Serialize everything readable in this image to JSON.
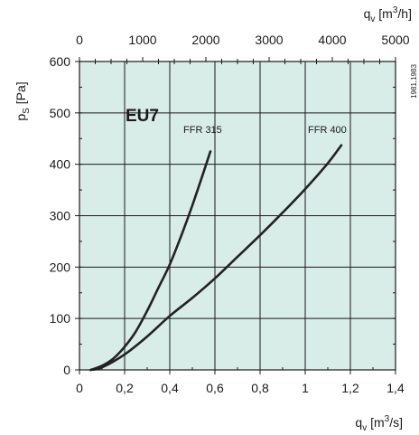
{
  "chart_data": {
    "type": "line",
    "title": "EU7",
    "side_note": "1981,1983",
    "xlabel": {
      "base": "q",
      "sub": "v",
      "unit_open": " [m",
      "unit_sup": "3",
      "unit_close": "/s]"
    },
    "x2label": {
      "base": "q",
      "sub": "v",
      "unit_open": " [m",
      "unit_sup": "3",
      "unit_close": "/h]"
    },
    "ylabel": {
      "base": "p",
      "sub": "S",
      "unit": " [Pa]"
    },
    "xlim": [
      0,
      1.4
    ],
    "ylim": [
      0,
      600
    ],
    "x2lim": [
      0,
      5000
    ],
    "x_ticks": [
      0,
      0.2,
      0.4,
      0.6,
      0.8,
      1,
      1.2,
      1.4
    ],
    "x_tick_labels": [
      "0",
      "0,2",
      "0,4",
      "0,6",
      "0,8",
      "1",
      "1,2",
      "1,4"
    ],
    "y_ticks": [
      0,
      100,
      200,
      300,
      400,
      500,
      600
    ],
    "y_tick_labels": [
      "0",
      "100",
      "200",
      "300",
      "400",
      "500",
      "600"
    ],
    "x2_ticks": [
      0,
      1000,
      2000,
      3000,
      4000,
      5000
    ],
    "x2_tick_labels": [
      "0",
      "1000",
      "2000",
      "3000",
      "4000",
      "5000"
    ],
    "grid": true,
    "background_color": "#d8ece8",
    "grid_color": "#1a1a1a",
    "line_color": "#222222",
    "series": [
      {
        "name": "FFR 315",
        "x": [
          0.05,
          0.1,
          0.15,
          0.2,
          0.25,
          0.3,
          0.35,
          0.4,
          0.45,
          0.5,
          0.55,
          0.58
        ],
        "y": [
          0,
          8,
          22,
          45,
          75,
          115,
          160,
          205,
          260,
          320,
          385,
          425
        ]
      },
      {
        "name": "FFR 400",
        "x": [
          0.05,
          0.1,
          0.2,
          0.3,
          0.4,
          0.5,
          0.6,
          0.7,
          0.8,
          0.9,
          1.0,
          1.1,
          1.16
        ],
        "y": [
          0,
          5,
          30,
          65,
          105,
          140,
          178,
          220,
          262,
          306,
          352,
          402,
          437
        ]
      }
    ]
  }
}
